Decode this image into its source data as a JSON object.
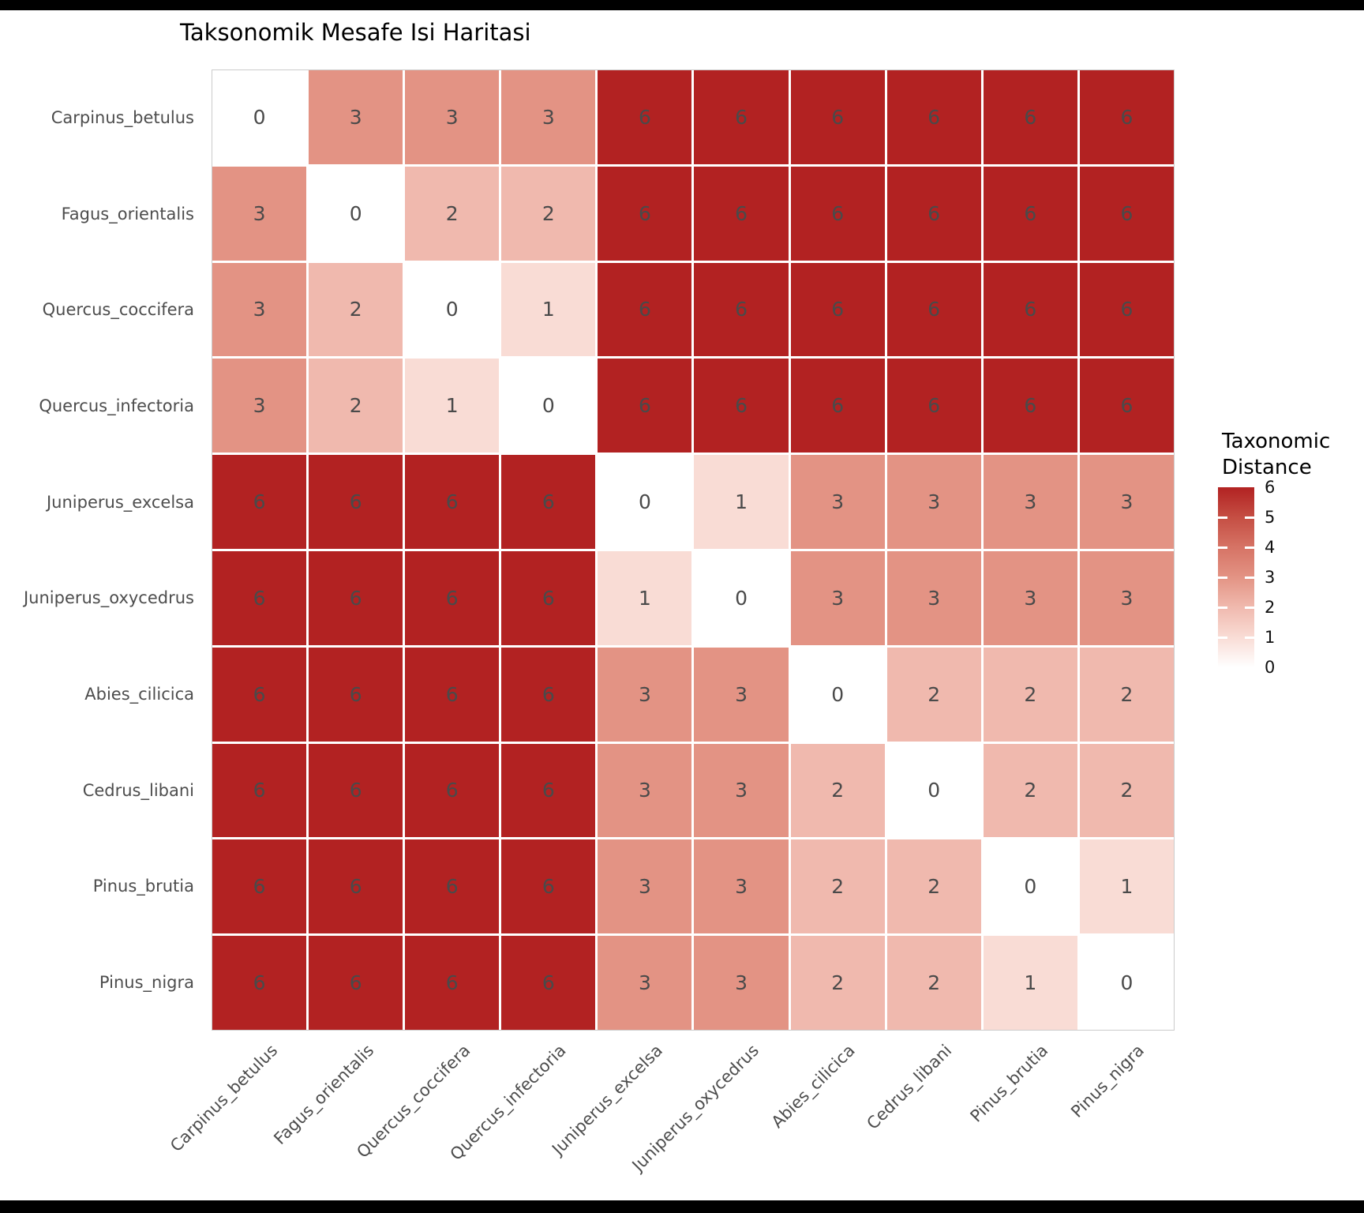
{
  "header": {
    "title": "Taksonomik Mesafe Isi Haritasi"
  },
  "legend": {
    "title": "Taxonomic\nDistance",
    "tick_labels": [
      "6",
      "5",
      "4",
      "3",
      "2",
      "1",
      "0"
    ]
  },
  "chart_data": {
    "type": "heatmap",
    "title": "Taksonomik Mesafe Isi Haritasi",
    "x_categories": [
      "Carpinus_betulus",
      "Fagus_orientalis",
      "Quercus_coccifera",
      "Quercus_infectoria",
      "Juniperus_excelsa",
      "Juniperus_oxycedrus",
      "Abies_cilicica",
      "Cedrus_libani",
      "Pinus_brutia",
      "Pinus_nigra"
    ],
    "y_categories": [
      "Carpinus_betulus",
      "Fagus_orientalis",
      "Quercus_coccifera",
      "Quercus_infectoria",
      "Juniperus_excelsa",
      "Juniperus_oxycedrus",
      "Abies_cilicica",
      "Cedrus_libani",
      "Pinus_brutia",
      "Pinus_nigra"
    ],
    "values": [
      [
        0,
        3,
        3,
        3,
        6,
        6,
        6,
        6,
        6,
        6
      ],
      [
        3,
        0,
        2,
        2,
        6,
        6,
        6,
        6,
        6,
        6
      ],
      [
        3,
        2,
        0,
        1,
        6,
        6,
        6,
        6,
        6,
        6
      ],
      [
        3,
        2,
        1,
        0,
        6,
        6,
        6,
        6,
        6,
        6
      ],
      [
        6,
        6,
        6,
        6,
        0,
        1,
        3,
        3,
        3,
        3
      ],
      [
        6,
        6,
        6,
        6,
        1,
        0,
        3,
        3,
        3,
        3
      ],
      [
        6,
        6,
        6,
        6,
        3,
        3,
        0,
        2,
        2,
        2
      ],
      [
        6,
        6,
        6,
        6,
        3,
        3,
        2,
        0,
        2,
        2
      ],
      [
        6,
        6,
        6,
        6,
        3,
        3,
        2,
        2,
        0,
        1
      ],
      [
        6,
        6,
        6,
        6,
        3,
        3,
        2,
        2,
        1,
        0
      ]
    ],
    "cell_labels_shown": true,
    "colorbar_title": "Taxonomic Distance",
    "colorbar_ticks": [
      6,
      5,
      4,
      3,
      2,
      1,
      0
    ],
    "value_range": [
      0,
      6
    ],
    "legend_position": "right",
    "grid": "white lines between tiles",
    "value_colors": {
      "0": "#ffffff",
      "1": "#f9dcd5",
      "2": "#f0b9ae",
      "3": "#e39384",
      "4": "#d67365",
      "5": "#c54e43",
      "6": "#b22222"
    },
    "axis_label_color": "#4d4d4d",
    "cell_text_color": "#4a4a4a",
    "title_color": "#000000"
  }
}
